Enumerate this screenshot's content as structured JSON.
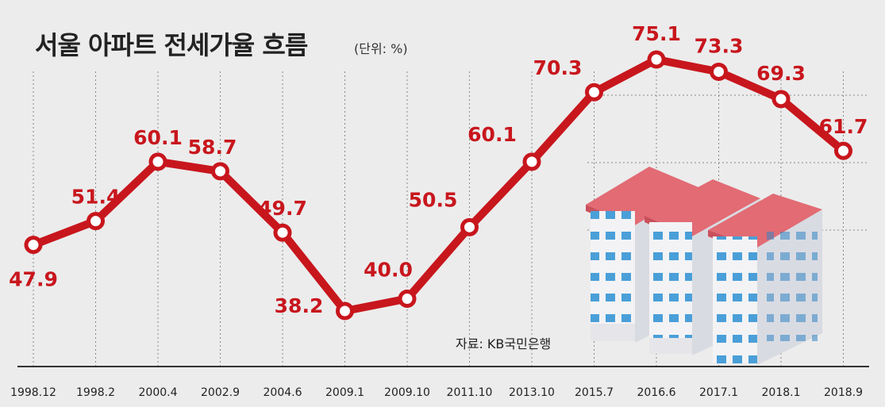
{
  "title": "서울 아파트 전세가율 흐름",
  "unit": "(단위: %)",
  "source": "자료: KB국민은행",
  "colors": {
    "line": "#c8161d",
    "labels": "#c8161d",
    "background": "#ececec",
    "grid": "#888888"
  },
  "illustration": "apartment-buildings-icon",
  "chart_data": {
    "type": "line",
    "title": "서울 아파트 전세가율 흐름",
    "unit": "%",
    "grid": "vertical dashed",
    "categories": [
      "1998.12",
      "1998.2",
      "2000.4",
      "2002.9",
      "2004.6",
      "2009.1",
      "2009.10",
      "2011.10",
      "2013.10",
      "2015.7",
      "2016.6",
      "2017.1",
      "2018.1",
      "2018.9"
    ],
    "series": [
      {
        "values": [
          47.9,
          51.4,
          60.1,
          58.7,
          49.7,
          38.2,
          40.0,
          50.5,
          60.1,
          70.3,
          75.1,
          73.3,
          69.3,
          61.7
        ],
        "labels": [
          "47.9",
          "51.4",
          "60.1",
          "58.7",
          "49.7",
          "38.2",
          "40.0",
          "50.5",
          "60.1",
          "70.3",
          "75.1",
          "73.3",
          "69.3",
          "61.7"
        ]
      }
    ]
  }
}
